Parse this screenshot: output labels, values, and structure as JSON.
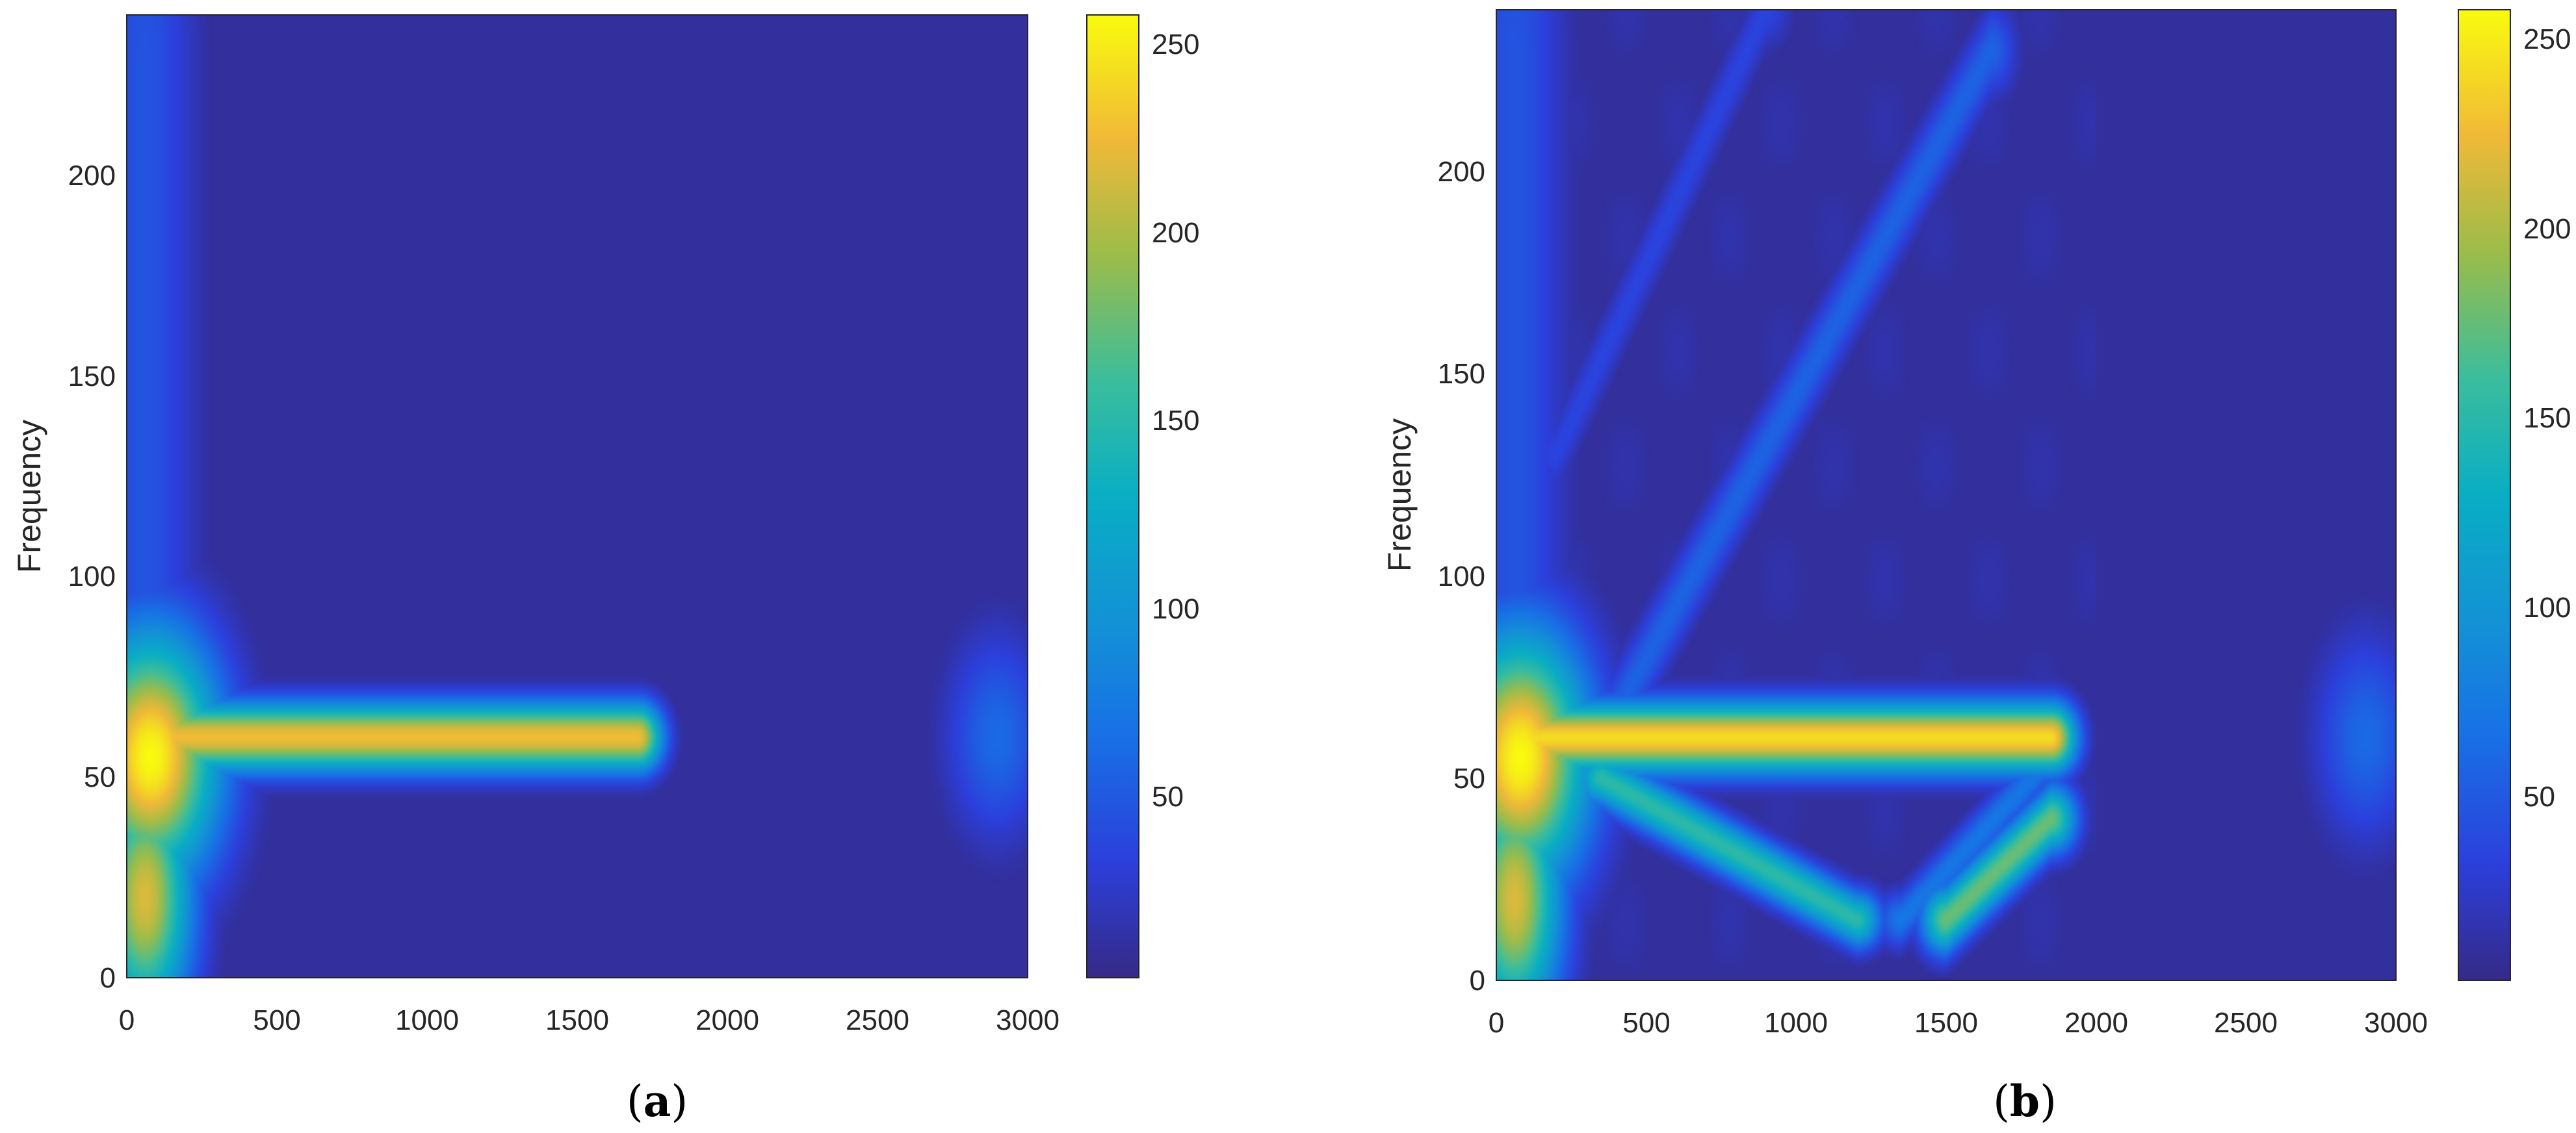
{
  "chart_data": [
    {
      "type": "heatmap",
      "panel_label_open": "(",
      "panel_label_letter": "a",
      "panel_label_close": ")",
      "xlabel": "",
      "ylabel": "Frequency",
      "xlim": [
        0,
        3000
      ],
      "ylim": [
        0,
        240
      ],
      "x_ticks": [
        "0",
        "500",
        "1000",
        "1500",
        "2000",
        "2500",
        "3000"
      ],
      "y_ticks": [
        "0",
        "50",
        "100",
        "150",
        "200"
      ],
      "colorbar": {
        "range": [
          0,
          256
        ],
        "ticks": [
          "50",
          "100",
          "150",
          "200",
          "250"
        ]
      },
      "colormap": "parula",
      "background_value": 8,
      "features": [
        {
          "kind": "segment",
          "x1": 120,
          "y1": 60,
          "x2": 1700,
          "y2": 60,
          "peak": 225,
          "width_freq": 6
        },
        {
          "kind": "blob",
          "x": 80,
          "y": 55,
          "peak": 256,
          "sx": 160,
          "sy": 22
        },
        {
          "kind": "blob",
          "x": 60,
          "y": 20,
          "peak": 215,
          "sx": 110,
          "sy": 22
        },
        {
          "kind": "blob",
          "x": 2900,
          "y": 60,
          "peak": 60,
          "sx": 120,
          "sy": 18
        },
        {
          "kind": "segment",
          "x1": 60,
          "y1": 60,
          "x2": 60,
          "y2": 230,
          "peak": 45,
          "width_time": 120
        }
      ]
    },
    {
      "type": "heatmap",
      "panel_label_open": "(",
      "panel_label_letter": "b",
      "panel_label_close": ")",
      "xlabel": "",
      "ylabel": "Frequency",
      "xlim": [
        0,
        3000
      ],
      "ylim": [
        0,
        240
      ],
      "x_ticks": [
        "0",
        "500",
        "1000",
        "1500",
        "2000",
        "2500",
        "3000"
      ],
      "y_ticks": [
        "0",
        "50",
        "100",
        "150",
        "200"
      ],
      "colorbar": {
        "range": [
          0,
          256
        ],
        "ticks": [
          "50",
          "100",
          "150",
          "200",
          "250"
        ]
      },
      "colormap": "parula",
      "background_value": 8,
      "features": [
        {
          "kind": "segment",
          "x1": 120,
          "y1": 60,
          "x2": 1850,
          "y2": 60,
          "peak": 240,
          "width_freq": 6
        },
        {
          "kind": "blob",
          "x": 80,
          "y": 55,
          "peak": 256,
          "sx": 160,
          "sy": 22
        },
        {
          "kind": "blob",
          "x": 60,
          "y": 20,
          "peak": 215,
          "sx": 110,
          "sy": 22
        },
        {
          "kind": "segment",
          "x1": 350,
          "y1": 60,
          "x2": 1650,
          "y2": 230,
          "peak": 55,
          "width_freq": 8
        },
        {
          "kind": "segment",
          "x1": 200,
          "y1": 130,
          "x2": 900,
          "y2": 240,
          "peak": 35,
          "width_freq": 7
        },
        {
          "kind": "segment",
          "x1": 350,
          "y1": 50,
          "x2": 1200,
          "y2": 15,
          "peak": 150,
          "width_freq": 5
        },
        {
          "kind": "segment",
          "x1": 1500,
          "y1": 15,
          "x2": 1850,
          "y2": 40,
          "peak": 175,
          "width_freq": 6
        },
        {
          "kind": "segment",
          "x1": 1350,
          "y1": 15,
          "x2": 1850,
          "y2": 55,
          "peak": 70,
          "width_freq": 5
        },
        {
          "kind": "blob",
          "x": 2900,
          "y": 60,
          "peak": 60,
          "sx": 120,
          "sy": 18
        },
        {
          "kind": "segment",
          "x1": 60,
          "y1": 60,
          "x2": 60,
          "y2": 230,
          "peak": 45,
          "width_time": 120
        },
        {
          "kind": "region",
          "x1": 0,
          "x2": 2000,
          "y1": 0,
          "y2": 240,
          "peak": 14
        }
      ]
    }
  ]
}
